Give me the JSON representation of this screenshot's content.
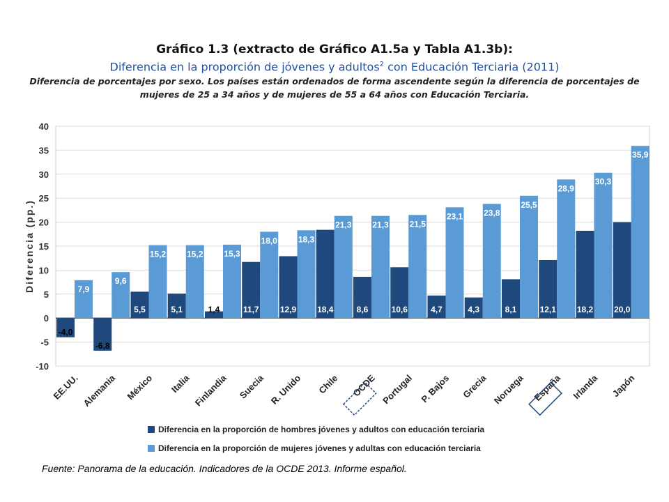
{
  "title": {
    "line1": "Gráfico 1.3 (extracto de Gráfico A1.5a y Tabla A1.3b):",
    "line2_before": "Diferencia en la proporción de jóvenes y adultos",
    "line2_sup": "2",
    "line2_after": " con Educación Terciaria (2011)",
    "description": "Diferencia de porcentajes por sexo. Los países están ordenados de forma ascendente según la diferencia de porcentajes de mujeres de 25 a 34 años y de mujeres de 55 a 64 años con Educación Terciaria."
  },
  "source": "Fuente: Panorama de la educación. Indicadores de la OCDE 2013. Informe español.",
  "chart_data": {
    "type": "bar",
    "ylabel": "Diferencia (pp.)",
    "ylim": [
      -10,
      40
    ],
    "yticks": [
      -10,
      -5,
      0,
      5,
      10,
      15,
      20,
      25,
      30,
      35,
      40
    ],
    "grid": true,
    "legend_position": "bottom",
    "categories": [
      "EE.UU.",
      "Alemania",
      "México",
      "Italia",
      "Finlandia",
      "Suecia",
      "R. Unido",
      "Chile",
      "OCDE",
      "Portugal",
      "P. Bajos",
      "Grecia",
      "Noruega",
      "España",
      "Irlanda",
      "Japón"
    ],
    "highlighted_categories": [
      "OCDE",
      "España"
    ],
    "series": [
      {
        "name": "Diferencia en la proporción de hombres jóvenes y adultos con educación terciaria",
        "color": "#1f497d",
        "values": [
          -4.0,
          -6.8,
          5.5,
          5.1,
          1.4,
          11.7,
          12.9,
          18.4,
          8.6,
          10.6,
          4.7,
          4.3,
          8.1,
          12.1,
          18.2,
          20.0
        ],
        "labels": [
          "-4,0",
          "-6,8",
          "5,5",
          "5,1",
          "1,4",
          "11,7",
          "12,9",
          "18,4",
          "8,6",
          "10,6",
          "4,7",
          "4,3",
          "8,1",
          "12,1",
          "18,2",
          "20,0"
        ]
      },
      {
        "name": "Diferencia en la proporción de mujeres jóvenes y adultas con educación terciaria",
        "color": "#5b9bd5",
        "values": [
          7.9,
          9.6,
          15.2,
          15.2,
          15.3,
          18.0,
          18.3,
          21.3,
          21.3,
          21.5,
          23.1,
          23.8,
          25.5,
          28.9,
          30.3,
          35.9
        ],
        "labels": [
          "7,9",
          "9,6",
          "15,2",
          "15,2",
          "15,3",
          "18,0",
          "18,3",
          "21,3",
          "21,3",
          "21,5",
          "23,1",
          "23,8",
          "25,5",
          "28,9",
          "30,3",
          "35,9"
        ]
      }
    ]
  }
}
